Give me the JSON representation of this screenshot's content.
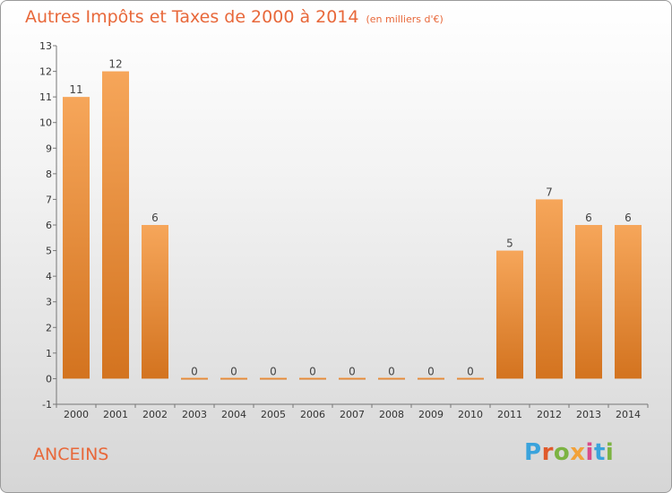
{
  "header": {
    "title": "Autres Impôts et Taxes de 2000 à 2014",
    "subtitle": "(en milliers d'€)"
  },
  "footer": {
    "commune": "ANCEINS",
    "logo_text": "Proxiti"
  },
  "colors": {
    "title": "#e8683a",
    "bar_light": "#f6a65a",
    "bar_dark": "#d3731f",
    "logo_letters": [
      "#3aa3dc",
      "#e05a2b",
      "#7cb342",
      "#f2a23a",
      "#d84a8a",
      "#3aa3dc",
      "#7cb342"
    ]
  },
  "chart_data": {
    "type": "bar",
    "categories": [
      "2000",
      "2001",
      "2002",
      "2003",
      "2004",
      "2005",
      "2006",
      "2007",
      "2008",
      "2009",
      "2010",
      "2011",
      "2012",
      "2013",
      "2014"
    ],
    "values": [
      11,
      12,
      6,
      0,
      0,
      0,
      0,
      0,
      0,
      0,
      0,
      5,
      7,
      6,
      6
    ],
    "ylim": [
      -1,
      13
    ],
    "yticks": [
      -1,
      0,
      1,
      2,
      3,
      4,
      5,
      6,
      7,
      8,
      9,
      10,
      11,
      12,
      13
    ],
    "grid": false,
    "legend": "none"
  }
}
